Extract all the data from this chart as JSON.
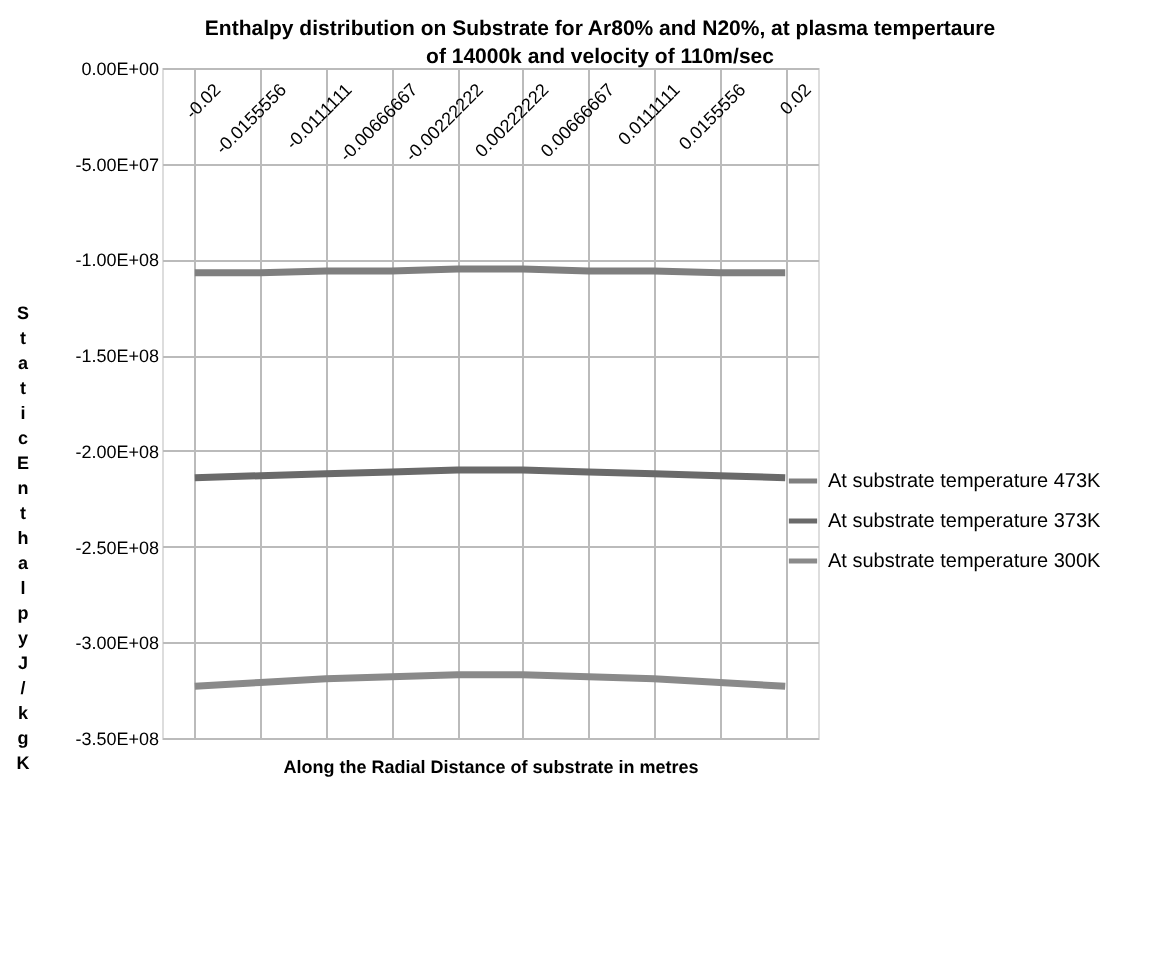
{
  "chart_data": {
    "type": "line",
    "title": [
      "Enthalpy distribution on Substrate for Ar80% and N20%, at plasma tempertaure",
      "of 14000k and velocity of 110m/sec"
    ],
    "xlabel": "Along the Radial Distance of  substrate in metres",
    "ylabel": "Static Enthalpy J/kgK",
    "categories": [
      "-0.02",
      "-0.0155556",
      "-0.0111111",
      "-0.00666667",
      "-0.00222222",
      "0.00222222",
      "0.00666667",
      "0.0111111",
      "0.0155556",
      "0.02"
    ],
    "series": [
      {
        "name": "At substrate temperature 473K",
        "color": "#7f7f7f",
        "values": [
          -107000000,
          -107000000,
          -106000000,
          -106000000,
          -105000000,
          -105000000,
          -106000000,
          -106000000,
          -107000000,
          -107000000
        ]
      },
      {
        "name": "At substrate temperature 373K",
        "color": "#6a6a6a",
        "values": [
          -214000000,
          -213000000,
          -212000000,
          -211000000,
          -210000000,
          -210000000,
          -211000000,
          -212000000,
          -213000000,
          -214000000
        ]
      },
      {
        "name": "At substrate temperature 300K",
        "color": "#8a8a8a",
        "values": [
          -323000000,
          -321000000,
          -319000000,
          -318000000,
          -317000000,
          -317000000,
          -318000000,
          -319000000,
          -321000000,
          -323000000
        ]
      }
    ],
    "ylim": [
      -350000000,
      0
    ],
    "yticks": [
      {
        "value": 0,
        "label": "0.00E+00"
      },
      {
        "value": -50000000,
        "label": "-5.00E+07"
      },
      {
        "value": -100000000,
        "label": "-1.00E+08"
      },
      {
        "value": -150000000,
        "label": "-1.50E+08"
      },
      {
        "value": -200000000,
        "label": "-2.00E+08"
      },
      {
        "value": -250000000,
        "label": "-2.50E+08"
      },
      {
        "value": -300000000,
        "label": "-3.00E+08"
      },
      {
        "value": -350000000,
        "label": "-3.50E+08"
      }
    ],
    "grid": true,
    "legend": "right",
    "marker": "none",
    "line_style": "solid"
  }
}
